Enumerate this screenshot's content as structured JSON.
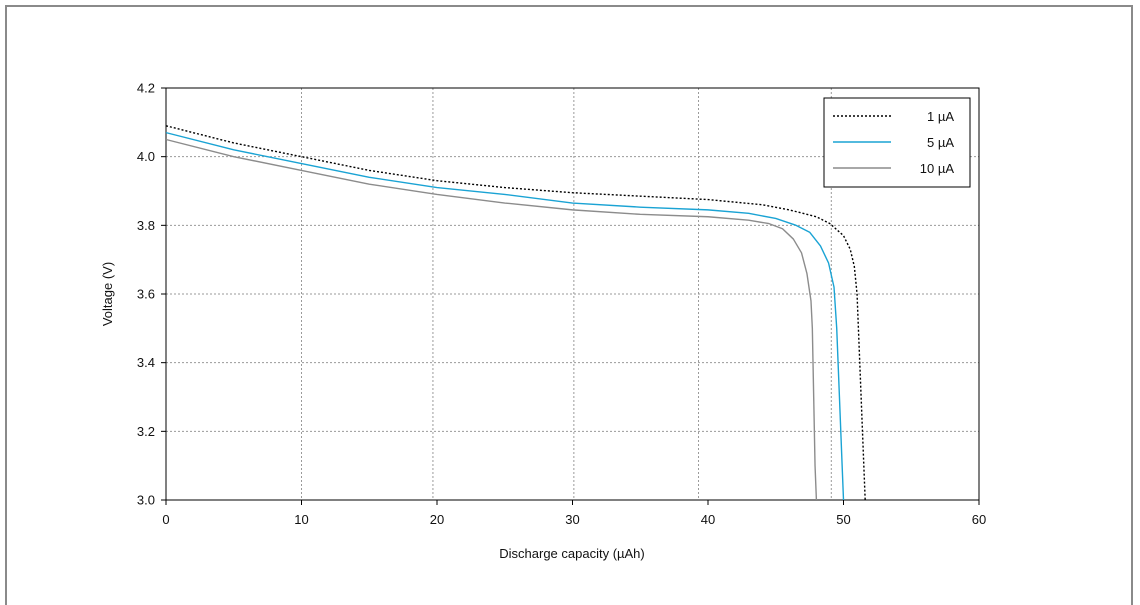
{
  "chart_data": {
    "type": "line",
    "title": "",
    "xlabel": "Discharge capacity (µAh)",
    "ylabel": "Voltage (V)",
    "xlim": [
      0,
      60
    ],
    "ylim": [
      3.0,
      4.2
    ],
    "xticks": [
      0,
      10,
      20,
      30,
      40,
      50,
      60
    ],
    "yticks": [
      3.0,
      3.2,
      3.4,
      3.6,
      3.8,
      4.0,
      4.2
    ],
    "xtick_labels": [
      "0",
      "10",
      "20",
      "30",
      "40",
      "50",
      "60"
    ],
    "ytick_labels": [
      "3.0",
      "3.2",
      "3.4",
      "3.6",
      "3.8",
      "4.0",
      "4.2"
    ],
    "x_gridlines": [
      10,
      19.7,
      30.1,
      39.3,
      49.1
    ],
    "y_gridlines": [
      3.2,
      3.4,
      3.6,
      3.8,
      4.0
    ],
    "grid": true,
    "legend_position": "top-right",
    "series": [
      {
        "name": "1 µA",
        "color": "#000000",
        "style": "dotted",
        "points": [
          [
            0,
            4.09
          ],
          [
            5,
            4.04
          ],
          [
            10,
            4.0
          ],
          [
            15,
            3.96
          ],
          [
            20,
            3.93
          ],
          [
            25,
            3.91
          ],
          [
            30,
            3.895
          ],
          [
            35,
            3.885
          ],
          [
            40,
            3.875
          ],
          [
            44,
            3.86
          ],
          [
            46,
            3.845
          ],
          [
            48,
            3.825
          ],
          [
            49,
            3.805
          ],
          [
            50,
            3.77
          ],
          [
            50.5,
            3.73
          ],
          [
            50.8,
            3.68
          ],
          [
            51.0,
            3.6
          ],
          [
            51.1,
            3.5
          ],
          [
            51.2,
            3.4
          ],
          [
            51.3,
            3.3
          ],
          [
            51.4,
            3.2
          ],
          [
            51.5,
            3.1
          ],
          [
            51.6,
            3.0
          ]
        ]
      },
      {
        "name": "5 µA",
        "color": "#1aa3d4",
        "style": "solid",
        "points": [
          [
            0,
            4.07
          ],
          [
            5,
            4.02
          ],
          [
            10,
            3.98
          ],
          [
            15,
            3.94
          ],
          [
            20,
            3.91
          ],
          [
            25,
            3.89
          ],
          [
            30,
            3.865
          ],
          [
            35,
            3.853
          ],
          [
            40,
            3.845
          ],
          [
            43,
            3.835
          ],
          [
            45,
            3.82
          ],
          [
            46.5,
            3.8
          ],
          [
            47.5,
            3.78
          ],
          [
            48.3,
            3.74
          ],
          [
            48.9,
            3.69
          ],
          [
            49.3,
            3.62
          ],
          [
            49.5,
            3.5
          ],
          [
            49.6,
            3.4
          ],
          [
            49.7,
            3.3
          ],
          [
            49.8,
            3.2
          ],
          [
            49.9,
            3.1
          ],
          [
            50.0,
            3.0
          ]
        ]
      },
      {
        "name": "10 µA",
        "color": "#8c8c8c",
        "style": "solid",
        "points": [
          [
            0,
            4.05
          ],
          [
            5,
            4.0
          ],
          [
            10,
            3.96
          ],
          [
            15,
            3.92
          ],
          [
            20,
            3.89
          ],
          [
            25,
            3.865
          ],
          [
            30,
            3.845
          ],
          [
            35,
            3.832
          ],
          [
            40,
            3.825
          ],
          [
            43,
            3.815
          ],
          [
            44.5,
            3.805
          ],
          [
            45.5,
            3.79
          ],
          [
            46.3,
            3.76
          ],
          [
            46.9,
            3.72
          ],
          [
            47.3,
            3.66
          ],
          [
            47.6,
            3.58
          ],
          [
            47.7,
            3.5
          ],
          [
            47.75,
            3.4
          ],
          [
            47.8,
            3.3
          ],
          [
            47.85,
            3.2
          ],
          [
            47.9,
            3.1
          ],
          [
            48.0,
            3.0
          ]
        ]
      }
    ]
  }
}
